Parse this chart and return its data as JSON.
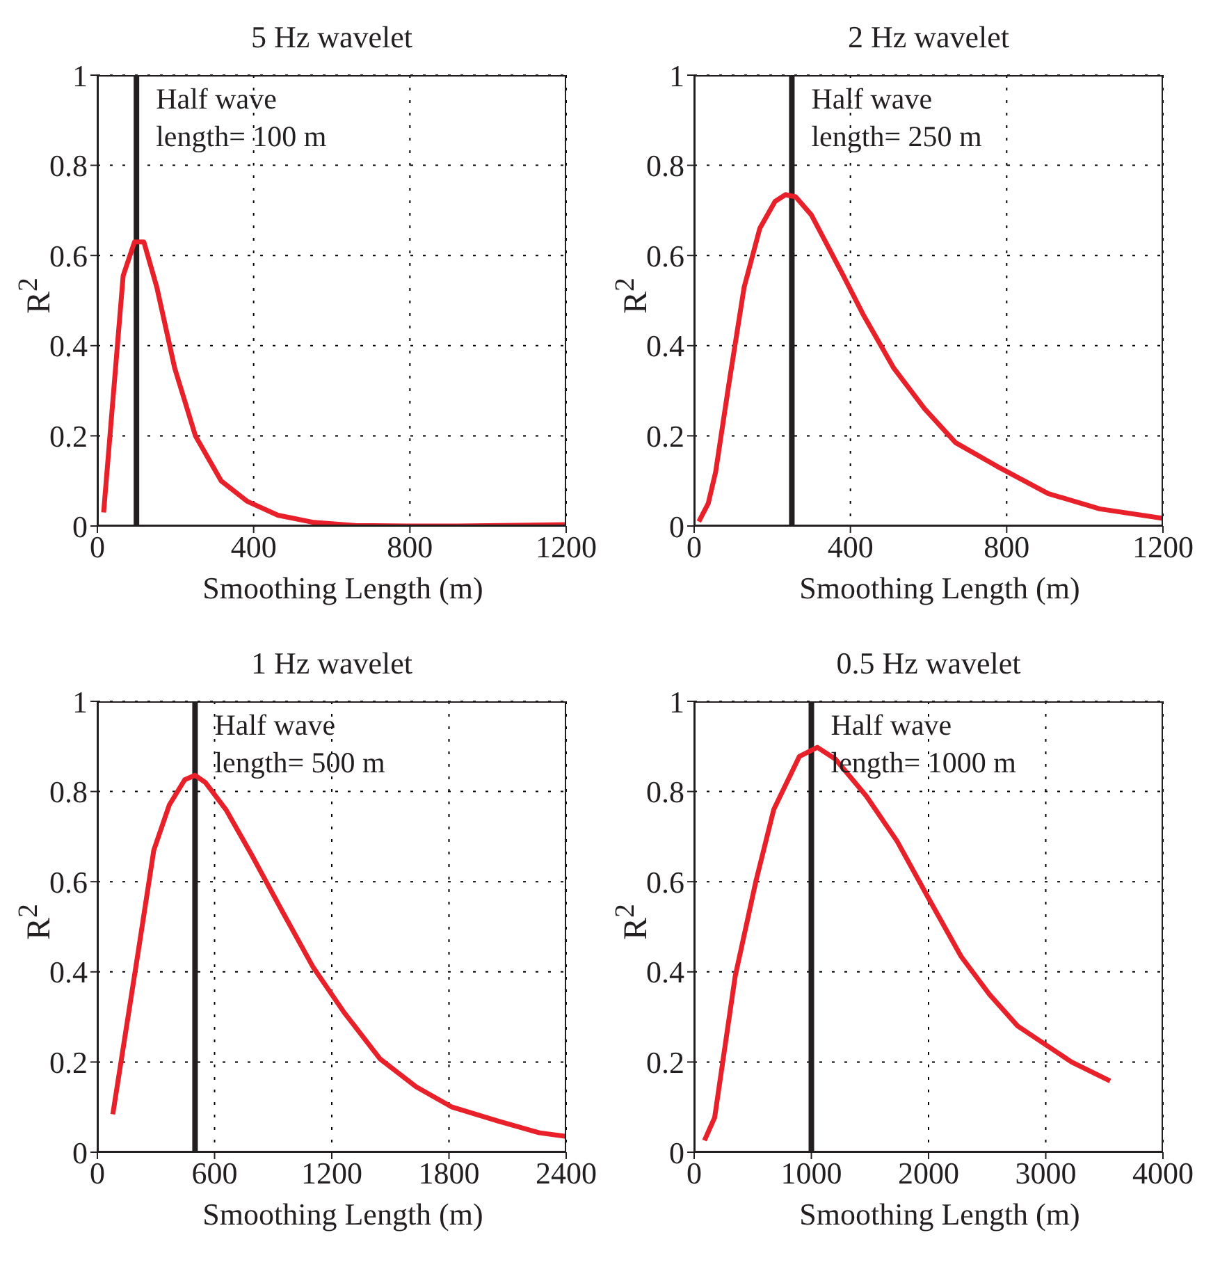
{
  "chart_data": [
    {
      "type": "line",
      "title": "5 Hz wavelet",
      "xlabel": "Smoothing Length (m)",
      "ylabel": "R$^{2}$",
      "x": [
        16,
        66,
        95,
        119,
        152,
        198,
        251,
        317,
        383,
        462,
        554,
        660,
        792,
        924,
        1200
      ],
      "series": [
        {
          "color": "#e8202a",
          "values": [
            0.03,
            0.555,
            0.63,
            0.63,
            0.53,
            0.35,
            0.2,
            0.1,
            0.055,
            0.024,
            0.008,
            0.001,
            0,
            0,
            0.003
          ]
        }
      ],
      "xlim": [
        0,
        1200
      ],
      "xticks": [
        0,
        400,
        800,
        1200
      ],
      "ylim": [
        0,
        1
      ],
      "yticks": [
        0,
        0.2,
        0.4,
        0.6,
        0.8,
        1
      ],
      "grid": true,
      "ref_lines": [
        {
          "axis": "x",
          "value": 100,
          "label": "Half wave length= 100 m",
          "color": "#231f20"
        }
      ]
    },
    {
      "type": "line",
      "title": "2 Hz wavelet",
      "xlabel": "Smoothing Length (m)",
      "ylabel": "R$^{2}$",
      "x": [
        12,
        36,
        55,
        88,
        128,
        168,
        207,
        234,
        260,
        300,
        379,
        432,
        511,
        590,
        669,
        774,
        906,
        1038,
        1200
      ],
      "series": [
        {
          "color": "#e8202a",
          "values": [
            0.01,
            0.05,
            0.12,
            0.31,
            0.53,
            0.66,
            0.72,
            0.735,
            0.73,
            0.69,
            0.56,
            0.47,
            0.35,
            0.26,
            0.185,
            0.133,
            0.072,
            0.038,
            0.017
          ]
        }
      ],
      "xlim": [
        0,
        1200
      ],
      "xticks": [
        0,
        400,
        800,
        1200
      ],
      "ylim": [
        0,
        1
      ],
      "yticks": [
        0,
        0.2,
        0.4,
        0.6,
        0.8,
        1
      ],
      "grid": true,
      "ref_lines": [
        {
          "axis": "x",
          "value": 250,
          "label": "Half wave length= 250 m",
          "color": "#231f20"
        }
      ]
    },
    {
      "type": "line",
      "title": "1 Hz wavelet",
      "xlabel": "Smoothing Length (m)",
      "ylabel": "R$^{2}$",
      "x": [
        79,
        211,
        289,
        368,
        447,
        500,
        553,
        658,
        789,
        947,
        1105,
        1263,
        1447,
        1632,
        1816,
        2053,
        2263,
        2400
      ],
      "series": [
        {
          "color": "#e8202a",
          "values": [
            0.084,
            0.45,
            0.67,
            0.77,
            0.826,
            0.836,
            0.82,
            0.76,
            0.66,
            0.534,
            0.41,
            0.31,
            0.207,
            0.145,
            0.1,
            0.069,
            0.043,
            0.035
          ]
        }
      ],
      "xlim": [
        0,
        2400
      ],
      "xticks": [
        0,
        600,
        1200,
        1800,
        2400
      ],
      "ylim": [
        0,
        1
      ],
      "yticks": [
        0,
        0.2,
        0.4,
        0.6,
        0.8,
        1
      ],
      "grid": true,
      "ref_lines": [
        {
          "axis": "x",
          "value": 500,
          "label": "Half wave length= 500 m",
          "color": "#231f20"
        }
      ]
    },
    {
      "type": "line",
      "title": "0.5 Hz wavelet",
      "xlabel": "Smoothing Length (m)",
      "ylabel": "R$^{2}$",
      "x": [
        88,
        175,
        350,
        526,
        679,
        898,
        1051,
        1205,
        1468,
        1731,
        1994,
        2278,
        2519,
        2760,
        3220,
        3549
      ],
      "series": [
        {
          "color": "#e8202a",
          "values": [
            0.026,
            0.077,
            0.39,
            0.6,
            0.76,
            0.878,
            0.898,
            0.872,
            0.79,
            0.69,
            0.566,
            0.434,
            0.35,
            0.28,
            0.2,
            0.158
          ]
        }
      ],
      "xlim": [
        0,
        4000
      ],
      "xticks": [
        0,
        1000,
        2000,
        3000,
        4000
      ],
      "ylim": [
        0,
        1
      ],
      "yticks": [
        0,
        0.2,
        0.4,
        0.6,
        0.8,
        1
      ],
      "grid": true,
      "ref_lines": [
        {
          "axis": "x",
          "value": 1000,
          "label": "Half wave length= 1000 m",
          "color": "#231f20"
        }
      ]
    }
  ]
}
